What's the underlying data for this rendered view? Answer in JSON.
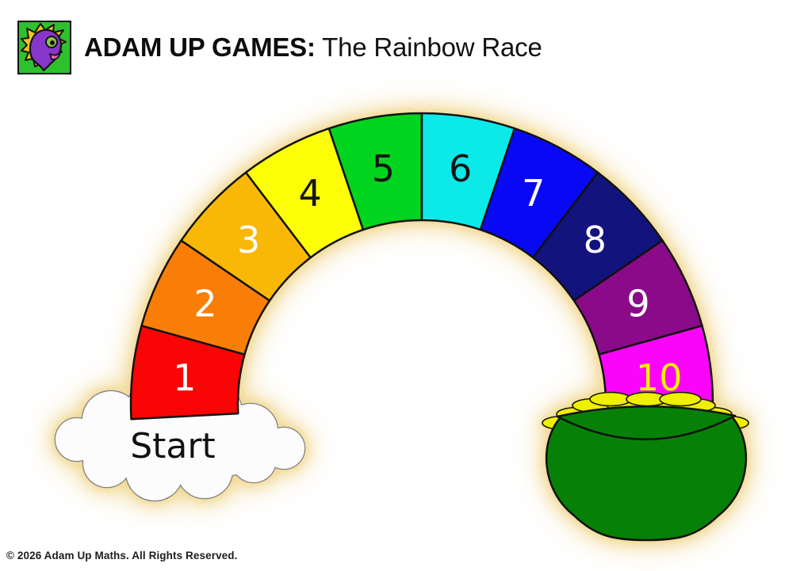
{
  "header": {
    "brand_bold": "ADAM UP GAMES:",
    "game_name": " The Rainbow Race",
    "logo": {
      "name": "adam-up-maths-mascot",
      "colors": {
        "bg": "#2dc12d",
        "mane": "#f2c41d",
        "head": "#8636c9",
        "eye": "#8dc63f",
        "mouth": "#e866b8"
      }
    }
  },
  "board": {
    "start_label": "Start",
    "glow_color": "#f0d484",
    "segments": [
      {
        "label": "1",
        "color": "#f90505",
        "label_color": "#ffffff"
      },
      {
        "label": "2",
        "color": "#f87e08",
        "label_color": "#ffffff"
      },
      {
        "label": "3",
        "color": "#f8b805",
        "label_color": "#ffffff"
      },
      {
        "label": "4",
        "color": "#fdfd05",
        "label_color": "#141414"
      },
      {
        "label": "5",
        "color": "#00d41e",
        "label_color": "#141414"
      },
      {
        "label": "6",
        "color": "#0ce9e9",
        "label_color": "#141414"
      },
      {
        "label": "7",
        "color": "#0808f5",
        "label_color": "#ffffff"
      },
      {
        "label": "8",
        "color": "#13137e",
        "label_color": "#ffffff"
      },
      {
        "label": "9",
        "color": "#8a0a8a",
        "label_color": "#ffffff"
      },
      {
        "label": "10",
        "color": "#fa05fa",
        "label_color": "#f0f000"
      }
    ],
    "cloud": {
      "fill": "#fcfcfc",
      "outline": "#828282"
    },
    "pot": {
      "body_color": "#078007",
      "coin_color": "#efef00"
    }
  },
  "footer": {
    "copyright": "© 2026 Adam Up Maths. All Rights Reserved."
  }
}
